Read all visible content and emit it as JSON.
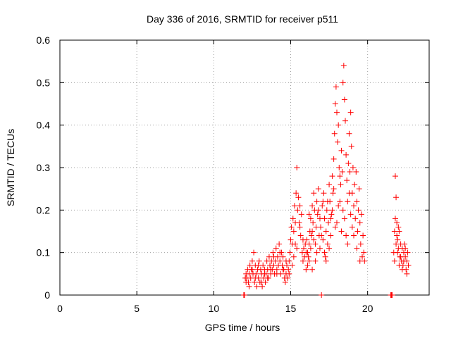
{
  "chart_data": {
    "type": "scatter",
    "title": "Day 336 of 2016, SRMTID for receiver p511",
    "xlabel": "GPS time / hours",
    "ylabel": "SRMTID / TECUs",
    "xlim": [
      0,
      24
    ],
    "ylim": [
      0,
      0.6
    ],
    "xticks": [
      0,
      5,
      10,
      15,
      20
    ],
    "yticks": [
      0,
      0.1,
      0.2,
      0.3,
      0.4,
      0.5,
      0.6
    ],
    "ytick_labels": [
      "0",
      "0.1",
      "0.2",
      "0.3",
      "0.4",
      "0.5",
      "0.6"
    ],
    "xtick_labels": [
      "0",
      "5",
      "10",
      "15",
      "20"
    ],
    "grid": true,
    "marker": "+",
    "color": "#ff0000",
    "series": [
      {
        "points": [
          [
            11.95,
            0.0
          ],
          [
            12.0,
            0.0
          ],
          [
            12.05,
            0.04
          ],
          [
            12.1,
            0.05
          ],
          [
            12.15,
            0.04
          ],
          [
            12.2,
            0.06
          ],
          [
            12.25,
            0.03
          ],
          [
            12.3,
            0.05
          ],
          [
            12.35,
            0.07
          ],
          [
            12.4,
            0.04
          ],
          [
            12.45,
            0.06
          ],
          [
            12.5,
            0.08
          ],
          [
            12.55,
            0.05
          ],
          [
            12.6,
            0.1
          ],
          [
            12.65,
            0.03
          ],
          [
            12.7,
            0.07
          ],
          [
            12.75,
            0.05
          ],
          [
            12.8,
            0.02
          ],
          [
            12.85,
            0.06
          ],
          [
            12.9,
            0.04
          ],
          [
            12.95,
            0.08
          ],
          [
            13.0,
            0.03
          ],
          [
            13.05,
            0.06
          ],
          [
            13.1,
            0.05
          ],
          [
            13.15,
            0.02
          ],
          [
            13.2,
            0.07
          ],
          [
            13.25,
            0.04
          ],
          [
            13.3,
            0.06
          ],
          [
            13.35,
            0.03
          ],
          [
            13.4,
            0.05
          ],
          [
            13.45,
            0.08
          ],
          [
            13.5,
            0.06
          ],
          [
            13.55,
            0.04
          ],
          [
            13.6,
            0.09
          ],
          [
            13.65,
            0.07
          ],
          [
            13.7,
            0.05
          ],
          [
            13.75,
            0.08
          ],
          [
            13.8,
            0.06
          ],
          [
            13.85,
            0.1
          ],
          [
            13.9,
            0.07
          ],
          [
            13.95,
            0.05
          ],
          [
            14.0,
            0.08
          ],
          [
            14.05,
            0.11
          ],
          [
            14.1,
            0.06
          ],
          [
            14.15,
            0.09
          ],
          [
            14.2,
            0.07
          ],
          [
            14.25,
            0.12
          ],
          [
            14.3,
            0.08
          ],
          [
            14.35,
            0.05
          ],
          [
            14.4,
            0.1
          ],
          [
            14.45,
            0.07
          ],
          [
            14.5,
            0.09
          ],
          [
            14.55,
            0.06
          ],
          [
            14.6,
            0.04
          ],
          [
            14.65,
            0.03
          ],
          [
            14.7,
            0.05
          ],
          [
            14.75,
            0.07
          ],
          [
            14.8,
            0.04
          ],
          [
            14.85,
            0.06
          ],
          [
            14.9,
            0.08
          ],
          [
            14.95,
            0.1
          ],
          [
            15.0,
            0.13
          ],
          [
            15.05,
            0.16
          ],
          [
            15.1,
            0.12
          ],
          [
            15.15,
            0.18
          ],
          [
            15.2,
            0.15
          ],
          [
            15.25,
            0.21
          ],
          [
            15.3,
            0.17
          ],
          [
            15.35,
            0.24
          ],
          [
            15.4,
            0.3
          ],
          [
            15.45,
            0.2
          ],
          [
            15.5,
            0.23
          ],
          [
            15.55,
            0.17
          ],
          [
            15.6,
            0.21
          ],
          [
            15.65,
            0.14
          ],
          [
            15.7,
            0.19
          ],
          [
            15.75,
            0.1
          ],
          [
            15.8,
            0.08
          ],
          [
            15.85,
            0.11
          ],
          [
            15.9,
            0.09
          ],
          [
            15.95,
            0.12
          ],
          [
            16.0,
            0.1
          ],
          [
            16.05,
            0.13
          ],
          [
            16.1,
            0.07
          ],
          [
            16.15,
            0.09
          ],
          [
            16.2,
            0.12
          ],
          [
            16.25,
            0.15
          ],
          [
            16.3,
            0.18
          ],
          [
            16.35,
            0.14
          ],
          [
            16.4,
            0.21
          ],
          [
            16.45,
            0.17
          ],
          [
            16.5,
            0.24
          ],
          [
            16.55,
            0.2
          ],
          [
            16.6,
            0.12
          ],
          [
            16.65,
            0.16
          ],
          [
            16.7,
            0.22
          ],
          [
            16.75,
            0.19
          ],
          [
            16.8,
            0.25
          ],
          [
            16.85,
            0.14
          ],
          [
            16.9,
            0.11
          ],
          [
            16.95,
            0.16
          ],
          [
            17.0,
            0.0
          ],
          [
            17.05,
            0.21
          ],
          [
            17.1,
            0.13
          ],
          [
            17.15,
            0.24
          ],
          [
            17.2,
            0.18
          ],
          [
            17.25,
            0.09
          ],
          [
            17.3,
            0.15
          ],
          [
            17.35,
            0.2
          ],
          [
            17.4,
            0.12
          ],
          [
            17.45,
            0.17
          ],
          [
            17.5,
            0.26
          ],
          [
            17.55,
            0.22
          ],
          [
            17.6,
            0.14
          ],
          [
            17.65,
            0.19
          ],
          [
            17.7,
            0.28
          ],
          [
            17.75,
            0.24
          ],
          [
            17.8,
            0.32
          ],
          [
            17.85,
            0.38
          ],
          [
            17.9,
            0.45
          ],
          [
            17.95,
            0.49
          ],
          [
            18.0,
            0.43
          ],
          [
            18.05,
            0.36
          ],
          [
            18.1,
            0.4
          ],
          [
            18.15,
            0.3
          ],
          [
            18.2,
            0.22
          ],
          [
            18.25,
            0.26
          ],
          [
            18.3,
            0.34
          ],
          [
            18.35,
            0.29
          ],
          [
            18.4,
            0.5
          ],
          [
            18.45,
            0.54
          ],
          [
            18.5,
            0.46
          ],
          [
            18.55,
            0.41
          ],
          [
            18.6,
            0.33
          ],
          [
            18.65,
            0.27
          ],
          [
            18.7,
            0.22
          ],
          [
            18.75,
            0.31
          ],
          [
            18.8,
            0.38
          ],
          [
            18.85,
            0.29
          ],
          [
            18.9,
            0.43
          ],
          [
            18.95,
            0.35
          ],
          [
            19.0,
            0.24
          ],
          [
            19.05,
            0.3
          ],
          [
            19.1,
            0.21
          ],
          [
            19.15,
            0.26
          ],
          [
            19.2,
            0.18
          ],
          [
            19.25,
            0.29
          ],
          [
            19.3,
            0.22
          ],
          [
            19.35,
            0.15
          ],
          [
            19.4,
            0.2
          ],
          [
            19.45,
            0.25
          ],
          [
            19.5,
            0.17
          ],
          [
            19.55,
            0.12
          ],
          [
            19.6,
            0.19
          ],
          [
            19.65,
            0.09
          ],
          [
            19.7,
            0.14
          ],
          [
            19.75,
            0.1
          ],
          [
            19.8,
            0.08
          ],
          [
            16.1,
            0.1
          ],
          [
            16.2,
            0.08
          ],
          [
            16.3,
            0.11
          ],
          [
            16.4,
            0.06
          ],
          [
            16.5,
            0.13
          ],
          [
            16.7,
            0.1
          ],
          [
            16.9,
            0.18
          ],
          [
            17.1,
            0.22
          ],
          [
            17.3,
            0.08
          ],
          [
            17.5,
            0.11
          ],
          [
            17.7,
            0.2
          ],
          [
            17.9,
            0.16
          ],
          [
            18.1,
            0.21
          ],
          [
            18.3,
            0.15
          ],
          [
            18.5,
            0.18
          ],
          [
            18.7,
            0.12
          ],
          [
            18.9,
            0.19
          ],
          [
            19.1,
            0.14
          ],
          [
            19.3,
            0.11
          ],
          [
            19.5,
            0.08
          ],
          [
            15.2,
            0.09
          ],
          [
            15.4,
            0.11
          ],
          [
            15.6,
            0.16
          ],
          [
            15.8,
            0.13
          ],
          [
            16.0,
            0.06
          ],
          [
            16.2,
            0.19
          ],
          [
            16.4,
            0.15
          ],
          [
            16.6,
            0.08
          ],
          [
            16.8,
            0.2
          ],
          [
            17.0,
            0.14
          ],
          [
            17.2,
            0.1
          ],
          [
            17.4,
            0.22
          ],
          [
            17.6,
            0.18
          ],
          [
            17.8,
            0.25
          ],
          [
            18.0,
            0.17
          ],
          [
            18.2,
            0.28
          ],
          [
            18.4,
            0.2
          ],
          [
            18.6,
            0.14
          ],
          [
            18.8,
            0.24
          ],
          [
            19.0,
            0.16
          ],
          [
            12.1,
            0.03
          ],
          [
            12.3,
            0.02
          ],
          [
            12.5,
            0.06
          ],
          [
            12.7,
            0.04
          ],
          [
            12.9,
            0.07
          ],
          [
            13.1,
            0.03
          ],
          [
            13.3,
            0.05
          ],
          [
            13.5,
            0.04
          ],
          [
            13.7,
            0.06
          ],
          [
            13.9,
            0.09
          ],
          [
            14.1,
            0.05
          ],
          [
            14.3,
            0.1
          ],
          [
            14.5,
            0.06
          ],
          [
            14.7,
            0.08
          ],
          [
            14.9,
            0.05
          ],
          [
            15.1,
            0.07
          ],
          [
            15.3,
            0.12
          ],
          [
            21.5,
            0.0
          ],
          [
            21.55,
            0.0
          ],
          [
            21.6,
            0.0
          ],
          [
            21.7,
            0.1
          ],
          [
            21.75,
            0.15
          ],
          [
            21.8,
            0.28
          ],
          [
            21.85,
            0.23
          ],
          [
            21.9,
            0.17
          ],
          [
            21.95,
            0.13
          ],
          [
            22.0,
            0.11
          ],
          [
            22.05,
            0.15
          ],
          [
            22.1,
            0.09
          ],
          [
            22.15,
            0.12
          ],
          [
            22.2,
            0.08
          ],
          [
            22.25,
            0.11
          ],
          [
            22.3,
            0.07
          ],
          [
            22.35,
            0.1
          ],
          [
            22.4,
            0.12
          ],
          [
            22.45,
            0.09
          ],
          [
            22.5,
            0.06
          ],
          [
            22.55,
            0.08
          ],
          [
            22.6,
            0.1
          ],
          [
            22.65,
            0.07
          ],
          [
            21.75,
            0.08
          ],
          [
            21.85,
            0.12
          ],
          [
            21.95,
            0.1
          ],
          [
            22.05,
            0.07
          ],
          [
            22.15,
            0.09
          ],
          [
            22.25,
            0.06
          ],
          [
            22.35,
            0.08
          ],
          [
            22.45,
            0.11
          ],
          [
            22.55,
            0.05
          ],
          [
            21.8,
            0.18
          ],
          [
            21.9,
            0.14
          ],
          [
            22.0,
            0.16
          ]
        ]
      }
    ]
  }
}
